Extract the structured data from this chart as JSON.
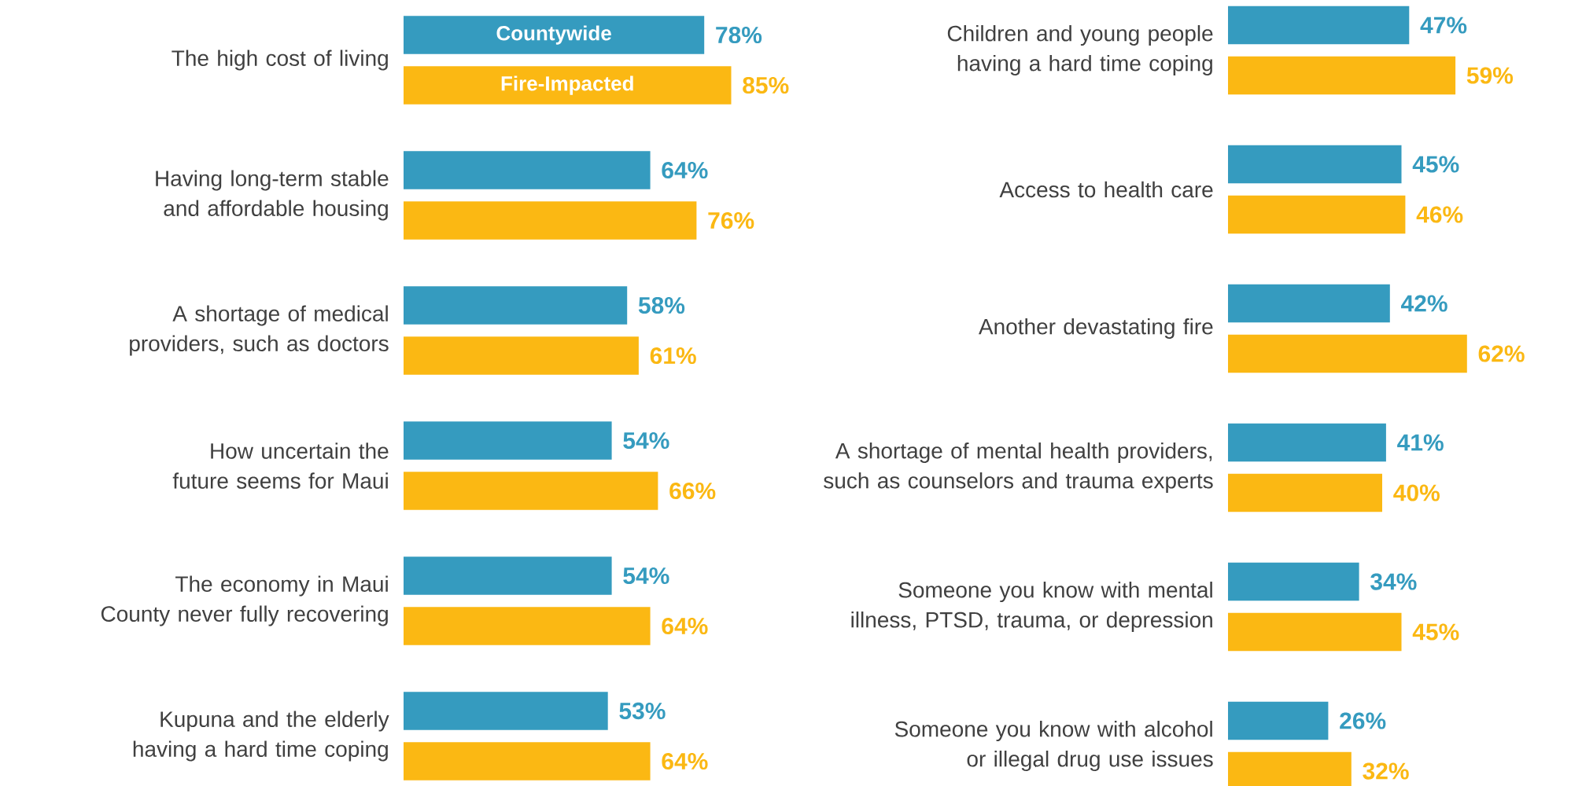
{
  "chart_data": [
    {
      "type": "bar",
      "orientation": "horizontal",
      "categories": [
        "The high cost of living",
        "Having long-term stable and affordable housing",
        "A shortage of medical providers, such as doctors",
        "How uncertain the future seems for Maui",
        "The economy in Maui County never fully recovering",
        "Kupuna and the elderly having a hard time coping"
      ],
      "series": [
        {
          "name": "Countywide",
          "color": "#359bbf",
          "values": [
            78,
            64,
            58,
            54,
            54,
            53
          ],
          "value_labels": [
            "78%",
            "64%",
            "58%",
            "54%",
            "54%",
            "53%"
          ]
        },
        {
          "name": "Fire-Impacted",
          "color": "#fbb813",
          "values": [
            85,
            76,
            61,
            66,
            64,
            64
          ],
          "value_labels": [
            "85%",
            "76%",
            "61%",
            "66%",
            "64%",
            "64%"
          ]
        }
      ]
    },
    {
      "type": "bar",
      "orientation": "horizontal",
      "categories": [
        "Children and young people having a hard time coping",
        "Access to health care",
        "Another devastating fire",
        "A shortage of mental health providers, such as counselors and trauma experts",
        "Someone you know with mental illness, PTSD, trauma, or depression",
        "Someone you know with alcohol or illegal drug use issues"
      ],
      "series": [
        {
          "color": "#359bbf",
          "values": [
            47,
            45,
            42,
            41,
            34,
            26
          ],
          "value_labels": [
            "47%",
            "45%",
            "42%",
            "41%",
            "34%",
            "26%"
          ]
        },
        {
          "color": "#fbb813",
          "values": [
            59,
            46,
            62,
            40,
            45,
            32
          ],
          "value_labels": [
            "59%",
            "46%",
            "62%",
            "40%",
            "45%",
            "32%"
          ]
        }
      ]
    }
  ]
}
